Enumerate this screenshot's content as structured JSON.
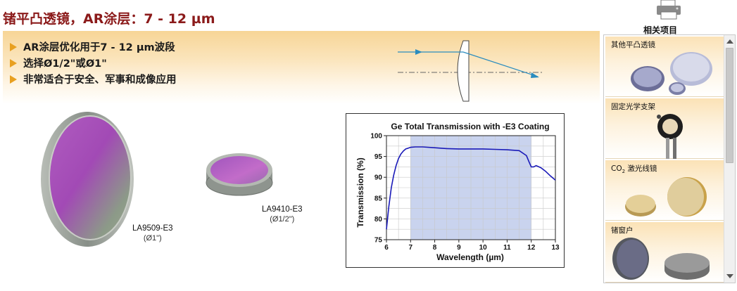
{
  "page": {
    "title": "锗平凸透镜，AR涂层：7 - 12 µm"
  },
  "features": {
    "items": [
      "AR涂层优化用于7 - 12 µm波段",
      "选择Ø1/2\"或Ø1\"",
      "非常适合于安全、军事和成像应用"
    ]
  },
  "products": {
    "large": {
      "part": "LA9509-E3",
      "size": "(Ø1\")"
    },
    "small": {
      "part": "LA9410-E3",
      "size": "(Ø1/2\")"
    }
  },
  "toolbar": {
    "print_icon": "printer-icon"
  },
  "related": {
    "title": "相关项目",
    "items": [
      {
        "label": "其他平凸透镜"
      },
      {
        "label": "固定光学支架"
      },
      {
        "label_prefix": "CO",
        "label_sub": "2",
        "label_suffix": " 激光线镜"
      },
      {
        "label": "锗窗户"
      }
    ]
  },
  "chart_data": {
    "type": "line",
    "title": "Ge Total Transmission with -E3 Coating",
    "xlabel": "Wavelength (µm)",
    "ylabel": "Transmission (%)",
    "xlim": [
      6,
      13
    ],
    "ylim": [
      75,
      100
    ],
    "x_ticks": [
      6,
      7,
      8,
      9,
      10,
      11,
      12,
      13
    ],
    "y_ticks": [
      75,
      80,
      85,
      90,
      95,
      100
    ],
    "grid": true,
    "highlight_band": [
      7,
      12
    ],
    "line_color": "#1a1ab8",
    "band_color": "#c9d3ee",
    "series": [
      {
        "x": [
          6.0,
          6.1,
          6.2,
          6.3,
          6.4,
          6.5,
          6.6,
          6.7,
          6.8,
          6.9,
          7.0,
          7.2,
          7.5,
          8.0,
          8.5,
          9.0,
          9.5,
          10.0,
          10.5,
          11.0,
          11.5,
          11.8,
          11.9,
          12.0,
          12.1,
          12.2,
          12.4,
          12.6,
          12.8,
          13.0
        ],
        "y": [
          77.5,
          83.0,
          87.5,
          90.5,
          92.8,
          94.5,
          95.6,
          96.3,
          96.8,
          97.0,
          97.2,
          97.3,
          97.3,
          97.1,
          96.9,
          96.8,
          96.8,
          96.8,
          96.7,
          96.6,
          96.4,
          95.2,
          93.8,
          92.5,
          92.5,
          92.8,
          92.3,
          91.4,
          90.3,
          89.3
        ]
      }
    ]
  }
}
